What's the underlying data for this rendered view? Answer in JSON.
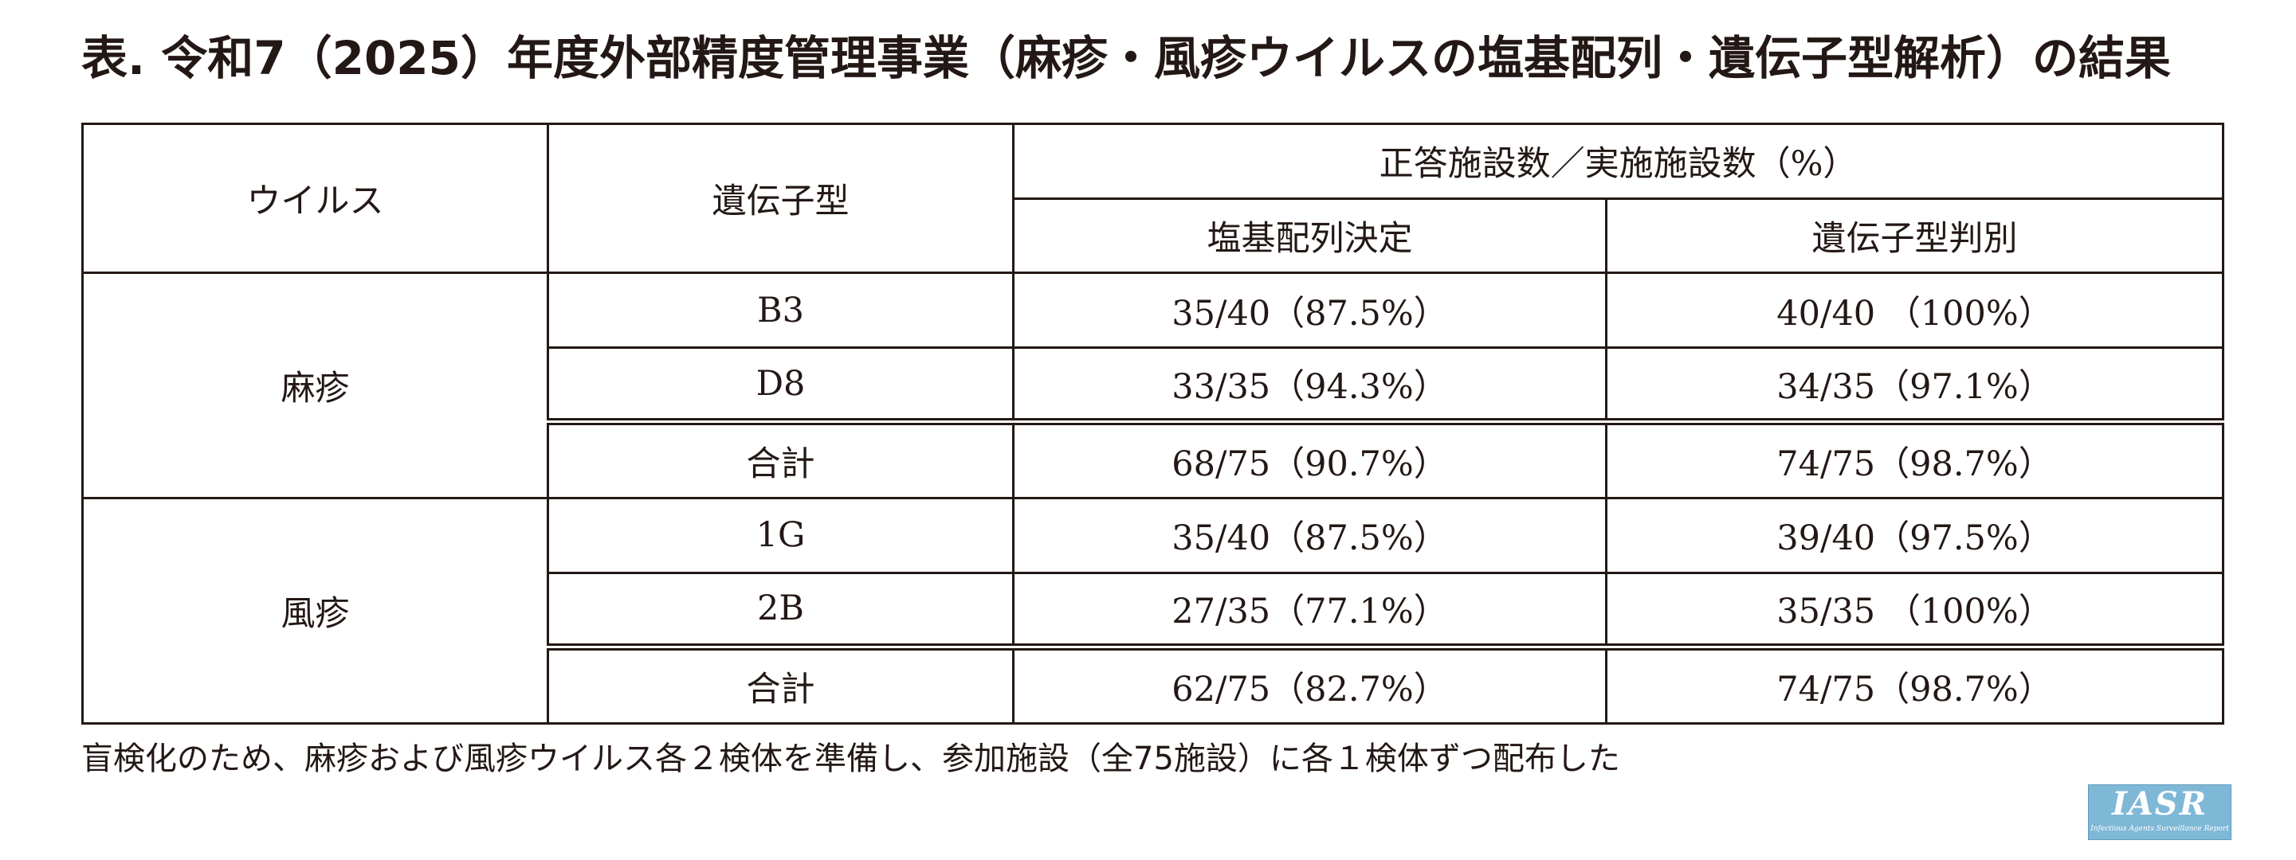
{
  "title": "表. 令和7（2025）年度外部精度管理事業（麻疹・風疹ウイルスの塩基配列・遺伝子型解析）の結果",
  "table": {
    "header": {
      "virus": "ウイルス",
      "genotype": "遺伝子型",
      "group": "正答施設数／実施施設数（%）",
      "sequence": "塩基配列決定",
      "genotyping": "遺伝子型判別"
    },
    "groups": [
      {
        "virus": "麻疹",
        "rows": [
          {
            "genotype": "B3",
            "sequence": "35/40（87.5%）",
            "genotyping": "40/40 （100%）"
          },
          {
            "genotype": "D8",
            "sequence": "33/35（94.3%）",
            "genotyping": "34/35（97.1%）"
          },
          {
            "genotype": "合計",
            "sequence": "68/75（90.7%）",
            "genotyping": "74/75（98.7%）"
          }
        ]
      },
      {
        "virus": "風疹",
        "rows": [
          {
            "genotype": "1G",
            "sequence": "35/40（87.5%）",
            "genotyping": "39/40（97.5%）"
          },
          {
            "genotype": "2B",
            "sequence": "27/35（77.1%）",
            "genotyping": "35/35 （100%）"
          },
          {
            "genotype": "合計",
            "sequence": "62/75（82.7%）",
            "genotyping": "74/75（98.7%）"
          }
        ]
      }
    ]
  },
  "note": "盲検化のため、麻疹および風疹ウイルス各２検体を準備し、参加施設（全75施設）に各１検体ずつ配布した",
  "logo": {
    "text": "IASR",
    "subtext": "Infectious Agents Surveillance Report"
  }
}
